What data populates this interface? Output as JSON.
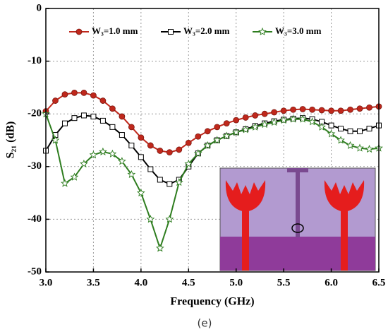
{
  "chart_data": {
    "type": "line",
    "xlabel": "Frequency (GHz)",
    "ylabel": "S₂₁ (dB)",
    "caption": "(e)",
    "x": [
      3.0,
      3.1,
      3.2,
      3.3,
      3.4,
      3.5,
      3.6,
      3.7,
      3.8,
      3.9,
      4.0,
      4.1,
      4.2,
      4.3,
      4.4,
      4.5,
      4.6,
      4.7,
      4.8,
      4.9,
      5.0,
      5.1,
      5.2,
      5.3,
      5.4,
      5.5,
      5.6,
      5.7,
      5.8,
      5.9,
      6.0,
      6.1,
      6.2,
      6.3,
      6.4,
      6.5
    ],
    "series": [
      {
        "name": "W₃=1.0 mm",
        "color": "#c0281c",
        "marker": "circle",
        "values": [
          -19.5,
          -17.5,
          -16.3,
          -16,
          -16,
          -16.5,
          -17.5,
          -19,
          -20.5,
          -22.5,
          -24.5,
          -26,
          -27,
          -27.3,
          -26.8,
          -25.5,
          -24.3,
          -23.3,
          -22.5,
          -21.8,
          -21.2,
          -20.7,
          -20.3,
          -20,
          -19.7,
          -19.4,
          -19.2,
          -19.1,
          -19.2,
          -19.3,
          -19.4,
          -19.4,
          -19.2,
          -19,
          -18.8,
          -18.6
        ]
      },
      {
        "name": "W₃=2.0 mm",
        "color": "#000000",
        "marker": "square",
        "values": [
          -27,
          -24,
          -21.8,
          -20.8,
          -20.3,
          -20.5,
          -21.3,
          -22.5,
          -24,
          -26,
          -28.2,
          -30.5,
          -32.5,
          -33.3,
          -32.5,
          -30,
          -27.5,
          -26,
          -25,
          -24.2,
          -23.5,
          -22.9,
          -22.3,
          -21.8,
          -21.4,
          -21.1,
          -20.9,
          -20.8,
          -21,
          -21.5,
          -22.2,
          -22.8,
          -23.3,
          -23.3,
          -22.8,
          -22.2
        ]
      },
      {
        "name": "W₃=3.0 mm",
        "color": "#2e7d1f",
        "marker": "star",
        "values": [
          -20,
          -25,
          -33.2,
          -32,
          -29.5,
          -27.8,
          -27.2,
          -27.6,
          -29,
          -31.5,
          -35,
          -40,
          -45.5,
          -40,
          -33,
          -29.5,
          -27.5,
          -26,
          -25,
          -24.2,
          -23.5,
          -23,
          -22.5,
          -22,
          -21.6,
          -21.2,
          -21,
          -21,
          -21.5,
          -22.5,
          -23.8,
          -25,
          -26,
          -26.5,
          -26.7,
          -26.5
        ]
      }
    ],
    "xlim": [
      3.0,
      6.5
    ],
    "xticks": [
      {
        "value": 3,
        "label": "3.0"
      },
      3.5,
      {
        "value": 4,
        "label": "4.0"
      },
      4.5,
      {
        "value": 5,
        "label": "5.0"
      },
      5.5,
      {
        "value": 6,
        "label": "6.0"
      },
      6.5
    ],
    "ylim": [
      -50,
      0
    ],
    "yticks": [
      -50,
      -40,
      -30,
      -20,
      -10,
      0
    ],
    "grid": true,
    "legend": "top"
  }
}
